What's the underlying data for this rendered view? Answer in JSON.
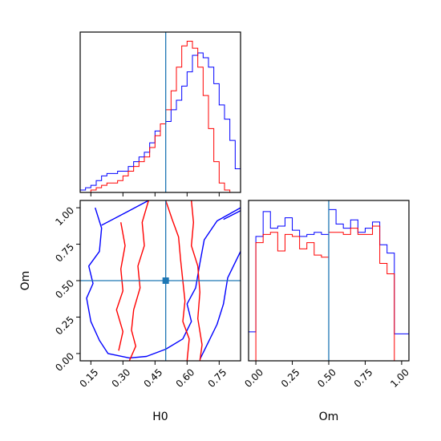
{
  "chart_data": [
    {
      "type": "histogram",
      "panel": "h0-marginal",
      "xlim": [
        0.1,
        0.85
      ],
      "truth": 0.5,
      "bin_edges": [
        0.1,
        0.125,
        0.15,
        0.175,
        0.2,
        0.225,
        0.25,
        0.275,
        0.3,
        0.325,
        0.35,
        0.375,
        0.4,
        0.425,
        0.45,
        0.475,
        0.5,
        0.525,
        0.55,
        0.575,
        0.6,
        0.625,
        0.65,
        0.675,
        0.7,
        0.725,
        0.75,
        0.775,
        0.8,
        0.825,
        0.85
      ],
      "series": [
        {
          "color": "#0000ff",
          "values": [
            1,
            2,
            3,
            5,
            7,
            8,
            8,
            9,
            9,
            11,
            13,
            15,
            17,
            21,
            26,
            29,
            30,
            35,
            39,
            45,
            51,
            58,
            59,
            57,
            53,
            46,
            37,
            31,
            22,
            10
          ]
        },
        {
          "color": "#ff0000",
          "values": [
            0,
            0,
            1,
            2,
            3,
            4,
            4,
            5,
            7,
            9,
            11,
            13,
            15,
            19,
            24,
            29,
            35,
            43,
            53,
            62,
            64,
            61,
            53,
            41,
            27,
            13,
            4,
            1,
            0,
            0
          ]
        }
      ]
    },
    {
      "type": "contour",
      "panel": "h0-om-joint",
      "xlabel": "H0",
      "ylabel": "Om",
      "xlim": [
        0.1,
        0.85
      ],
      "ylim": [
        -0.05,
        1.05
      ],
      "xticks": [
        "0.15",
        "0.30",
        "0.45",
        "0.60",
        "0.75"
      ],
      "yticks": [
        "0.00",
        "0.25",
        "0.50",
        "0.75",
        "1.00"
      ],
      "truth": [
        0.5,
        0.5
      ],
      "series": [
        {
          "color": "#0000ff",
          "contours": [
            [
              [
                0.17,
                1.0
              ],
              [
                0.2,
                0.86
              ],
              [
                0.19,
                0.7
              ],
              [
                0.14,
                0.6
              ],
              [
                0.16,
                0.48
              ],
              [
                0.13,
                0.38
              ],
              [
                0.15,
                0.22
              ],
              [
                0.19,
                0.09
              ],
              [
                0.23,
                0.0
              ],
              [
                0.33,
                -0.03
              ],
              [
                0.41,
                -0.02
              ],
              [
                0.5,
                0.03
              ],
              [
                0.58,
                0.1
              ],
              [
                0.62,
                0.22
              ],
              [
                0.6,
                0.34
              ],
              [
                0.64,
                0.45
              ],
              [
                0.66,
                0.62
              ],
              [
                0.68,
                0.78
              ],
              [
                0.74,
                0.91
              ],
              [
                0.85,
                1.0
              ]
            ],
            [
              [
                0.85,
                0.7
              ],
              [
                0.79,
                0.52
              ],
              [
                0.77,
                0.34
              ],
              [
                0.74,
                0.2
              ],
              [
                0.7,
                0.08
              ],
              [
                0.66,
                -0.04
              ]
            ],
            [
              [
                0.2,
                0.88
              ],
              [
                0.33,
                0.98
              ],
              [
                0.42,
                1.05
              ]
            ],
            [
              [
                0.77,
                0.92
              ],
              [
                0.85,
                0.98
              ]
            ]
          ]
        },
        {
          "color": "#ff0000",
          "contours": [
            [
              [
                0.42,
                1.05
              ],
              [
                0.39,
                0.9
              ],
              [
                0.4,
                0.74
              ],
              [
                0.37,
                0.6
              ],
              [
                0.38,
                0.45
              ],
              [
                0.35,
                0.3
              ],
              [
                0.34,
                0.16
              ],
              [
                0.36,
                0.05
              ],
              [
                0.33,
                -0.05
              ]
            ],
            [
              [
                0.5,
                1.05
              ],
              [
                0.53,
                0.92
              ],
              [
                0.56,
                0.8
              ],
              [
                0.57,
                0.64
              ],
              [
                0.58,
                0.5
              ],
              [
                0.59,
                0.36
              ],
              [
                0.58,
                0.22
              ],
              [
                0.61,
                0.1
              ],
              [
                0.6,
                -0.05
              ]
            ],
            [
              [
                0.29,
                0.9
              ],
              [
                0.31,
                0.74
              ],
              [
                0.29,
                0.58
              ],
              [
                0.3,
                0.43
              ],
              [
                0.27,
                0.3
              ],
              [
                0.3,
                0.15
              ],
              [
                0.28,
                0.02
              ]
            ],
            [
              [
                0.62,
                1.05
              ],
              [
                0.63,
                0.9
              ],
              [
                0.62,
                0.74
              ],
              [
                0.65,
                0.6
              ],
              [
                0.66,
                0.42
              ],
              [
                0.65,
                0.24
              ],
              [
                0.67,
                0.06
              ],
              [
                0.66,
                -0.05
              ]
            ]
          ]
        }
      ]
    },
    {
      "type": "histogram",
      "panel": "om-marginal",
      "xlabel": "Om",
      "xlim": [
        -0.05,
        1.05
      ],
      "xticks": [
        "0.00",
        "0.25",
        "0.50",
        "0.75",
        "1.00"
      ],
      "truth": 0.5,
      "bin_edges": [
        -0.05,
        0.0,
        0.05,
        0.1,
        0.15,
        0.2,
        0.25,
        0.3,
        0.35,
        0.4,
        0.45,
        0.5,
        0.55,
        0.6,
        0.65,
        0.7,
        0.75,
        0.8,
        0.85,
        0.9,
        0.95,
        1.0,
        1.05
      ],
      "series": [
        {
          "color": "#0000ff",
          "values": [
            14,
            60,
            72,
            64,
            65,
            69,
            63,
            60,
            61,
            62,
            61,
            73,
            66,
            64,
            68,
            62,
            64,
            67,
            56,
            52,
            13,
            13
          ]
        },
        {
          "color": "#ff0000",
          "values": [
            0,
            57,
            61,
            62,
            53,
            61,
            60,
            54,
            57,
            51,
            50,
            62,
            62,
            61,
            64,
            61,
            61,
            65,
            47,
            42,
            0,
            0
          ]
        }
      ]
    }
  ]
}
